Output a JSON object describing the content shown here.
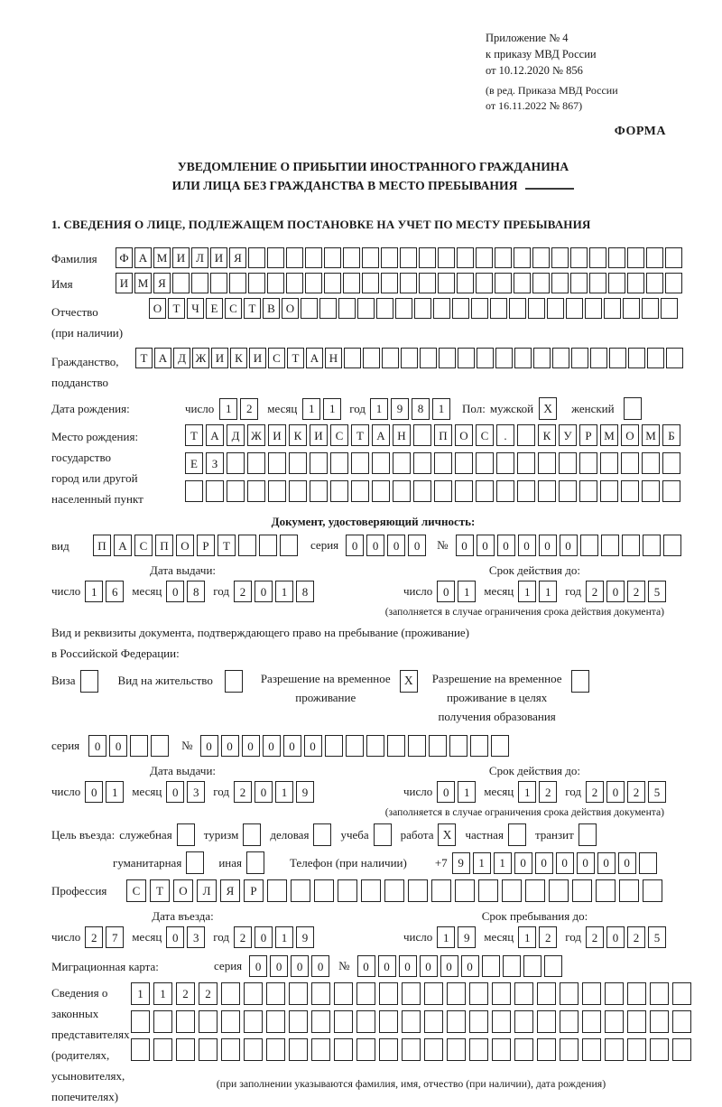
{
  "header": {
    "line1": "Приложение № 4",
    "line2": "к приказу МВД России",
    "line3": "от 10.12.2020 № 856",
    "line4": "(в ред. Приказа МВД России",
    "line5": "от 16.11.2022 № 867)",
    "form_label": "ФОРМА"
  },
  "title": {
    "line1": "УВЕДОМЛЕНИЕ О ПРИБЫТИИ ИНОСТРАННОГО ГРАЖДАНИНА",
    "line2": "ИЛИ ЛИЦА БЕЗ ГРАЖДАНСТВА В МЕСТО ПРЕБЫВАНИЯ"
  },
  "section1_heading": "1. СВЕДЕНИЯ О ЛИЦЕ, ПОДЛЕЖАЩЕМ ПОСТАНОВКЕ НА УЧЕТ ПО МЕСТУ ПРЕБЫВАНИЯ",
  "labels": {
    "surname": "Фамилия",
    "name": "Имя",
    "patronymic": "Отчество",
    "patronymic2": "(при наличии)",
    "citizenship": "Гражданство,",
    "citizenship2": "подданство",
    "birth_date": "Дата рождения:",
    "day": "число",
    "month": "месяц",
    "year": "год",
    "sex": "Пол:",
    "male": "мужской",
    "female": "женский",
    "birth_place": [
      "Место рождения:",
      "государство",
      "город или другой",
      "населенный пункт"
    ],
    "identity_doc_heading": "Документ, удостоверяющий личность:",
    "kind": "вид",
    "series": "серия",
    "number": "№",
    "issue_date": "Дата выдачи:",
    "valid_until": "Срок действия до:",
    "limit_note": "(заполняется в случае ограничения срока действия документа)",
    "residence_doc_line1": "Вид и реквизиты документа, подтверждающего право на пребывание (проживание)",
    "residence_doc_line2": "в Российской Федерации:",
    "visa": "Виза",
    "residence_permit": "Вид на жительство",
    "temp_residence": [
      "Разрешение на временное",
      "проживание"
    ],
    "temp_residence_edu": [
      "Разрешение на временное",
      "проживание в целях",
      "получения образования"
    ],
    "purpose": "Цель въезда:",
    "purpose_official": "служебная",
    "purpose_tourism": "туризм",
    "purpose_business": "деловая",
    "purpose_study": "учеба",
    "purpose_work": "работа",
    "purpose_private": "частная",
    "purpose_transit": "транзит",
    "purpose_humanitarian": "гуманитарная",
    "purpose_other": "иная",
    "phone": "Телефон (при наличии)",
    "phone_prefix": "+7",
    "profession": "Профессия",
    "entry_date": "Дата въезда:",
    "stay_until": "Срок пребывания до:",
    "migration_card": "Миграционная карта:",
    "guardians": [
      "Сведения о",
      "законных",
      "представителях",
      "(родителях,",
      "усыновителях,",
      "попечителях)"
    ],
    "guardians_note": "(при заполнении указываются фамилия, имя, отчество (при наличии), дата рождения)"
  },
  "fields": {
    "surname": {
      "text": "ФАМИЛИЯ",
      "len": 30
    },
    "name": {
      "text": "ИМЯ",
      "len": 30
    },
    "patronymic": {
      "text": "ОТЧЕСТВО",
      "len": 28
    },
    "citizenship": {
      "text": "ТАДЖИКИСТАН",
      "len": 29
    },
    "birth": {
      "day": "12",
      "month": "11",
      "year": "1981"
    },
    "sex": {
      "male": "X",
      "female": ""
    },
    "birth_place_row1": {
      "text": "ТАДЖИКИСТАН ПОС. КУРМОМБ",
      "len": 24
    },
    "birth_place_row2": {
      "text": "ЕЗ",
      "len": 24
    },
    "birth_place_row3": {
      "text": "",
      "len": 24
    },
    "identity_doc": {
      "kind": {
        "text": "ПАСПОРТ",
        "len": 10
      },
      "series": {
        "text": "0000",
        "len": 4
      },
      "number": {
        "text": "000000",
        "len": 11
      },
      "issue": {
        "day": "16",
        "month": "08",
        "year": "2018"
      },
      "valid": {
        "day": "01",
        "month": "11",
        "year": "2025"
      }
    },
    "residence": {
      "visa": "",
      "permit": "",
      "temp": "X",
      "temp_edu": "",
      "series": {
        "text": "00",
        "len": 4
      },
      "number": {
        "text": "000000",
        "len": 15
      },
      "issue": {
        "day": "01",
        "month": "03",
        "year": "2019"
      },
      "valid": {
        "day": "01",
        "month": "12",
        "year": "2025"
      }
    },
    "purpose": {
      "official": "",
      "tourism": "",
      "business": "",
      "study": "",
      "work": "X",
      "private": "",
      "transit": "",
      "humanitarian": "",
      "other": ""
    },
    "phone": {
      "text": "911000000",
      "len": 10
    },
    "profession": {
      "text": "СТОЛЯР",
      "len": 23
    },
    "entry": {
      "day": "27",
      "month": "03",
      "year": "2019"
    },
    "stay": {
      "day": "19",
      "month": "12",
      "year": "2025"
    },
    "migration_card": {
      "series": {
        "text": "0000",
        "len": 4
      },
      "number": {
        "text": "000000",
        "len": 10
      }
    },
    "guardians_row1": {
      "text": "1122",
      "len": 25
    },
    "guardians_row2": {
      "text": "",
      "len": 25
    },
    "guardians_row3": {
      "text": "",
      "len": 25
    }
  }
}
